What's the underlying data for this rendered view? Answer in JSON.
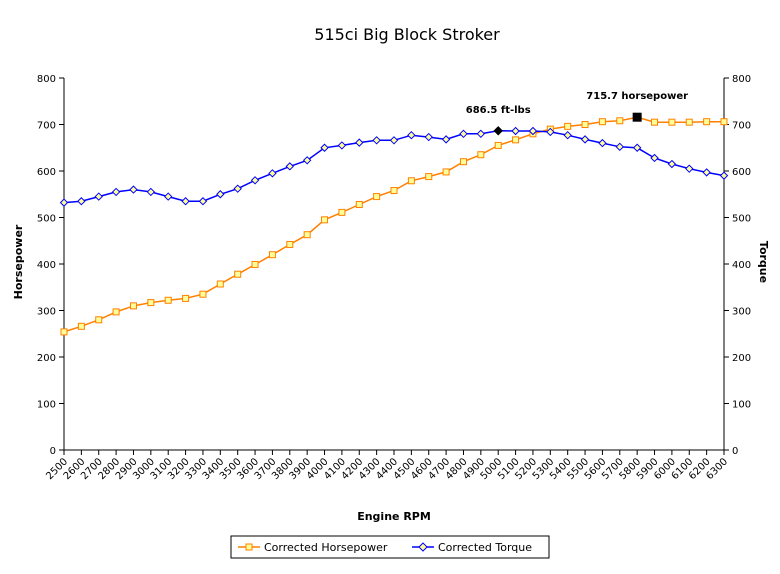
{
  "chart_data": {
    "type": "line",
    "title": "515ci Big Block Stroker",
    "xlabel": "Engine RPM",
    "ylabel": "Horsepower",
    "y2label": "Torque",
    "ylim": [
      0,
      800
    ],
    "y2lim": [
      0,
      800
    ],
    "yticks": [
      0,
      100,
      200,
      300,
      400,
      500,
      600,
      700,
      800
    ],
    "grid": false,
    "legend": "bottom",
    "categories": [
      "2500",
      "2600",
      "2700",
      "2800",
      "2900",
      "3000",
      "3100",
      "3200",
      "3300",
      "3400",
      "3500",
      "3600",
      "3700",
      "3800",
      "3900",
      "4000",
      "4100",
      "4200",
      "4300",
      "4400",
      "4500",
      "4600",
      "4700",
      "4800",
      "4900",
      "5000",
      "5100",
      "5200",
      "5300",
      "5400",
      "5500",
      "5600",
      "5700",
      "5800",
      "5900",
      "6000",
      "6100",
      "6200",
      "6300"
    ],
    "series": [
      {
        "name": "Corrected Horsepower",
        "color": "#ff8000",
        "marker_fill": "#ffff99",
        "values": [
          254,
          266,
          280,
          297,
          310,
          317,
          322,
          326,
          335,
          357,
          378,
          399,
          420,
          442,
          463,
          495,
          511,
          528,
          545,
          558,
          579,
          588,
          598,
          620,
          635,
          655,
          667,
          680,
          690,
          696,
          700,
          706,
          708,
          715.7,
          705,
          705,
          705,
          706,
          706
        ]
      },
      {
        "name": "Corrected Torque",
        "color": "#0000ff",
        "marker_fill": "#ffff99",
        "values": [
          532,
          535,
          545,
          555,
          560,
          555,
          545,
          535,
          535,
          550,
          562,
          580,
          595,
          610,
          623,
          650,
          655,
          661,
          666,
          666,
          677,
          673,
          668,
          680,
          680,
          686.5,
          686,
          686,
          684,
          677,
          668,
          660,
          652,
          650,
          628,
          615,
          605,
          597,
          590
        ]
      }
    ],
    "annotations": [
      {
        "text": "686.5 ft-lbs",
        "series": "Corrected Torque",
        "x": "5000",
        "y": 686.5,
        "color": "#000000"
      },
      {
        "text": "715.7 horsepower",
        "series": "Corrected Horsepower",
        "x": "5800",
        "y": 715.7,
        "color": "#000000"
      }
    ]
  }
}
